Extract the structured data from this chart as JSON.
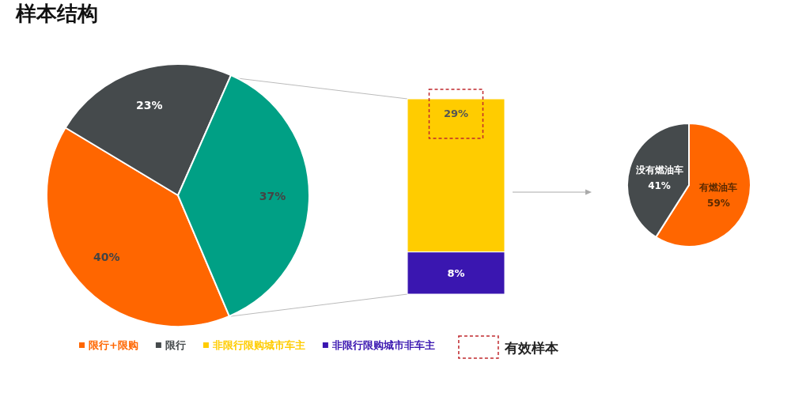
{
  "chart_data": [
    {
      "type": "pie",
      "title": "样本结构",
      "categories": [
        "限行+限购",
        "限行",
        null
      ],
      "values": [
        40,
        23,
        37
      ],
      "colors": [
        "#ff6600",
        "#454a4c",
        "#00a085"
      ],
      "value_labels": [
        "40%",
        "23%",
        "37%"
      ],
      "legend": "bottom"
    },
    {
      "type": "bar",
      "stacked": true,
      "categories": [
        null
      ],
      "series": [
        {
          "name": "非限行限购城市非车主",
          "color": "#3a16b0",
          "values": [
            8
          ],
          "value_labels": [
            "8%"
          ]
        },
        {
          "name": "非限行限购城市车主",
          "color": "#ffcc00",
          "values": [
            29
          ],
          "value_labels": [
            "29%"
          ]
        }
      ],
      "annotations": [
        "有效样本"
      ],
      "legend": "bottom"
    },
    {
      "type": "pie",
      "categories": [
        "有燃油车",
        "没有燃油车"
      ],
      "values": [
        59,
        41
      ],
      "colors": [
        "#ff6600",
        "#454a4c"
      ],
      "value_labels": [
        "59%",
        "41%"
      ],
      "data_labels": true
    }
  ]
}
